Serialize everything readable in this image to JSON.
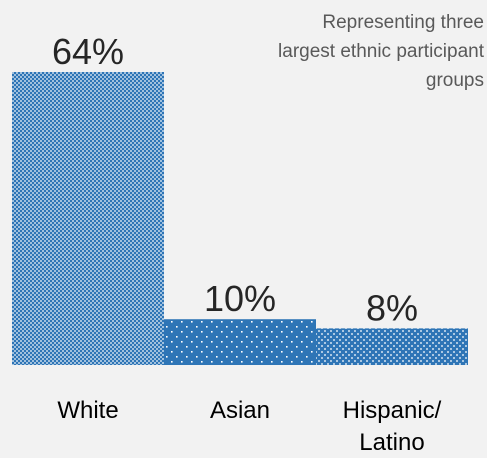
{
  "chart_data": {
    "type": "bar",
    "categories": [
      "White",
      "Asian",
      "Hispanic/\nLatino"
    ],
    "values": [
      64,
      10,
      8
    ],
    "value_labels": [
      "64%",
      "10%",
      "8%"
    ],
    "ylim": [
      0,
      64
    ],
    "grid": false,
    "annotation": [
      "Representing three",
      "largest ethnic participant",
      "groups"
    ],
    "colors": {
      "bar": "#2e75b6",
      "bar_dark": "#1f4e79",
      "background": "#f2f2f2",
      "note_text": "#595959"
    }
  }
}
